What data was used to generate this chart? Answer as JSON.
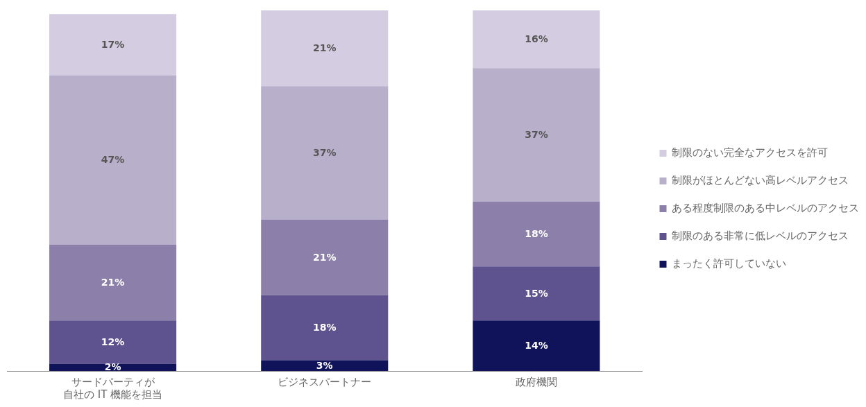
{
  "chart_data": {
    "type": "bar",
    "stacked": true,
    "legend": "right",
    "tick_labels": "x",
    "grid": false,
    "categories": [
      "サードパーティが自社の IT 機能を担当",
      "ビジネスパートナー",
      "政府機関"
    ],
    "series": [
      {
        "name": "まったく許可していない",
        "color": "#10135a",
        "values": [
          2,
          3,
          14
        ],
        "value_labels": [
          "2%",
          "3%",
          "14%"
        ]
      },
      {
        "name": "制限のある非常に低レベルのアクセス",
        "color": "#5f538f",
        "values": [
          12,
          18,
          15
        ],
        "value_labels": [
          "12%",
          "18%",
          "15%"
        ]
      },
      {
        "name": "ある程度制限のある中レベルのアクセス",
        "color": "#8c80ab",
        "values": [
          21,
          21,
          18
        ],
        "value_labels": [
          "21%",
          "21%",
          "18%"
        ]
      },
      {
        "name": "制限がほとんどない高レベルアクセス",
        "color": "#b8b0cb",
        "values": [
          47,
          37,
          37
        ],
        "value_labels": [
          "47%",
          "37%",
          "37%"
        ]
      },
      {
        "name": "制限のない完全なアクセスを許可",
        "color": "#d4cce1",
        "values": [
          17,
          21,
          16
        ],
        "value_labels": [
          "17%",
          "21%",
          "16%"
        ]
      }
    ]
  }
}
